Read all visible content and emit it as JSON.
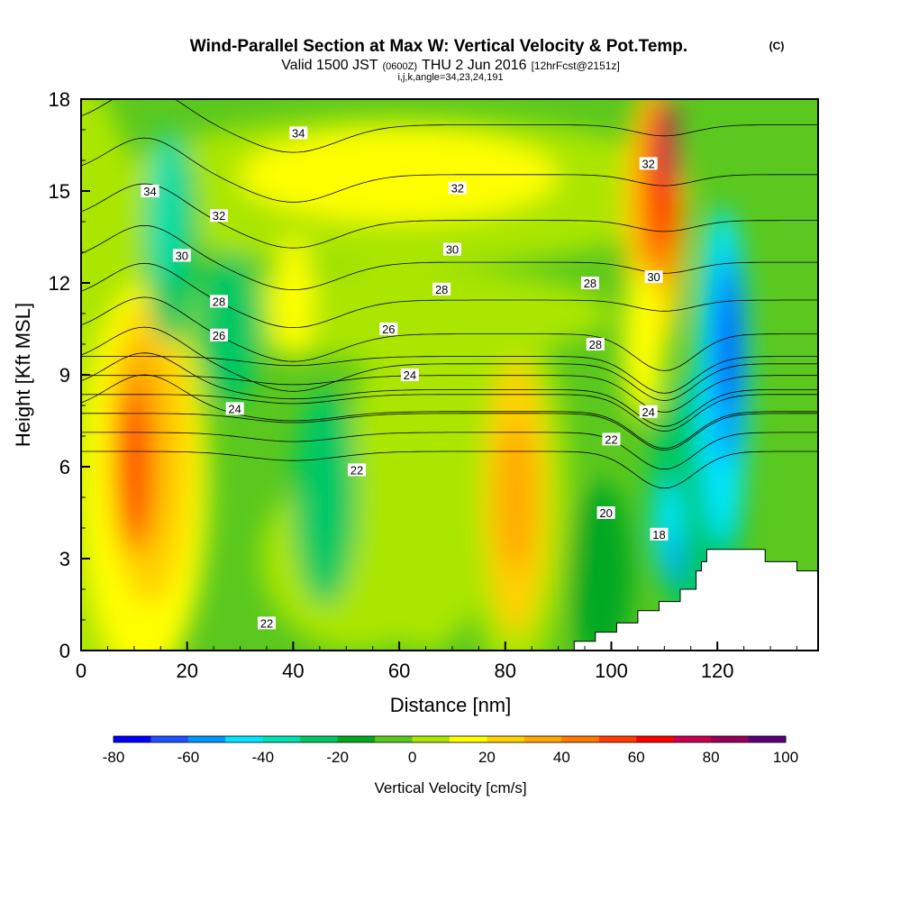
{
  "chart_data": {
    "type": "heatmap",
    "title": "Wind-Parallel Section at Max W: Vertical Velocity & Pot.Temp.",
    "title_mark": "(C)",
    "subtitle_main": "Valid 1500 JST",
    "subtitle_utc": "(0600Z)",
    "subtitle_date": "THU 2 Jun 2016",
    "subtitle_fcst": "[12hrFcst@2151z]",
    "subtitle2": "i,j,k,angle=34,23,24,191",
    "xlabel": "Distance [nm]",
    "ylabel": "Height [Kft MSL]",
    "xlim": [
      0,
      139
    ],
    "ylim": [
      0,
      18
    ],
    "xticks": [
      "0",
      "20",
      "40",
      "60",
      "80",
      "100",
      "120"
    ],
    "yticks": [
      "0",
      "3",
      "6",
      "9",
      "12",
      "15",
      "18"
    ],
    "colorbar_label": "Vertical Velocity [cm/s]",
    "colorbar_ticks": [
      "-80",
      "-60",
      "-40",
      "-20",
      "0",
      "20",
      "40",
      "60",
      "80",
      "100"
    ],
    "colorbar_colors": [
      "#0000ff",
      "#2050ff",
      "#0096ff",
      "#00e6ff",
      "#00e0b0",
      "#00c864",
      "#00a820",
      "#5ac81e",
      "#aae600",
      "#ffff00",
      "#ffd200",
      "#ffa800",
      "#ff7800",
      "#ff3c00",
      "#ff0000",
      "#c80050",
      "#96005a",
      "#5a0078"
    ],
    "theta_contour_labels": [
      {
        "text": "34",
        "x": 41,
        "y": 16.9
      },
      {
        "text": "34",
        "x": 13,
        "y": 15.0
      },
      {
        "text": "32",
        "x": 26,
        "y": 14.2
      },
      {
        "text": "32",
        "x": 71,
        "y": 15.1
      },
      {
        "text": "32",
        "x": 107,
        "y": 15.9
      },
      {
        "text": "30",
        "x": 19,
        "y": 12.9
      },
      {
        "text": "30",
        "x": 70,
        "y": 13.1
      },
      {
        "text": "30",
        "x": 108,
        "y": 12.2
      },
      {
        "text": "28",
        "x": 26,
        "y": 11.4
      },
      {
        "text": "28",
        "x": 68,
        "y": 11.8
      },
      {
        "text": "28",
        "x": 96,
        "y": 12.0
      },
      {
        "text": "28",
        "x": 97,
        "y": 10.0
      },
      {
        "text": "26",
        "x": 26,
        "y": 10.3
      },
      {
        "text": "26",
        "x": 58,
        "y": 10.5
      },
      {
        "text": "24",
        "x": 62,
        "y": 9.0
      },
      {
        "text": "24",
        "x": 29,
        "y": 7.9
      },
      {
        "text": "24",
        "x": 107,
        "y": 7.8
      },
      {
        "text": "22",
        "x": 52,
        "y": 5.9
      },
      {
        "text": "22",
        "x": 100,
        "y": 6.9
      },
      {
        "text": "22",
        "x": 35,
        "y": 0.9
      },
      {
        "text": "20",
        "x": 99,
        "y": 4.5
      },
      {
        "text": "18",
        "x": 109,
        "y": 3.8
      }
    ],
    "terrain": [
      [
        93,
        0
      ],
      [
        93,
        0.3
      ],
      [
        97,
        0.3
      ],
      [
        97,
        0.6
      ],
      [
        101,
        0.6
      ],
      [
        101,
        0.9
      ],
      [
        105,
        0.9
      ],
      [
        105,
        1.3
      ],
      [
        109,
        1.3
      ],
      [
        109,
        1.6
      ],
      [
        113,
        1.6
      ],
      [
        113,
        2.0
      ],
      [
        116,
        2.0
      ],
      [
        116,
        2.6
      ],
      [
        117,
        2.6
      ],
      [
        117,
        2.9
      ],
      [
        118,
        2.9
      ],
      [
        118,
        3.3
      ],
      [
        129,
        3.3
      ],
      [
        129,
        2.9
      ],
      [
        135,
        2.9
      ],
      [
        135,
        2.6
      ],
      [
        139,
        2.6
      ],
      [
        139,
        0
      ]
    ]
  }
}
